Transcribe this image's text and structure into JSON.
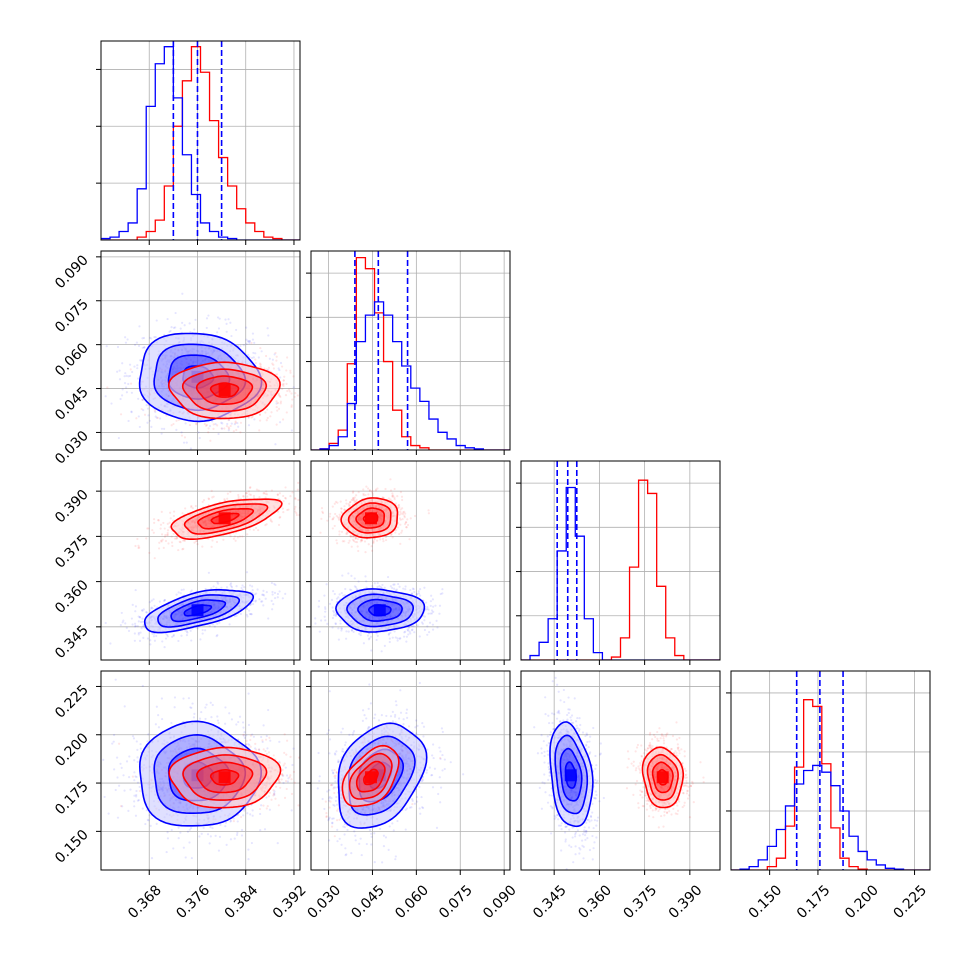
{
  "chart_data": {
    "type": "corner",
    "grid": true,
    "colors": {
      "series_a": "#0000ff",
      "series_b": "#ff0000"
    },
    "parameters": [
      {
        "range": [
          0.36,
          0.393
        ],
        "ticks": [
          "0.368",
          "0.376",
          "0.384",
          "0.392"
        ],
        "tick_values": [
          0.368,
          0.376,
          0.384,
          0.392
        ],
        "quantiles_a": [
          0.372,
          0.376,
          0.38
        ],
        "hist": {
          "bin_start": 0.36,
          "bin_width": 0.0015,
          "a": [
            0.5,
            1,
            3,
            6,
            18,
            47,
            62,
            68,
            50,
            30,
            16,
            6,
            3,
            1,
            0.5,
            0,
            0,
            0,
            0,
            0,
            0,
            0
          ],
          "b": [
            0,
            0,
            0,
            0,
            1,
            3,
            7,
            19,
            40,
            56,
            68,
            59,
            42,
            29,
            19,
            11,
            6,
            3,
            1,
            0.5,
            0,
            0
          ]
        }
      },
      {
        "range": [
          0.024,
          0.092
        ],
        "ticks": [
          "0.030",
          "0.045",
          "0.060",
          "0.075",
          "0.090"
        ],
        "tick_values": [
          0.03,
          0.045,
          0.06,
          0.075,
          0.09
        ],
        "quantiles_a": [
          0.039,
          0.047,
          0.057
        ],
        "hist": {
          "bin_start": 0.024,
          "bin_width": 0.0031,
          "a": [
            0,
            0.5,
            2,
            6,
            21,
            49,
            61,
            67,
            61,
            49,
            38,
            28,
            22,
            14,
            8,
            5,
            2,
            1,
            0.5,
            0,
            0,
            0
          ],
          "b": [
            0,
            0.5,
            3,
            9,
            39,
            87,
            82,
            62,
            40,
            18,
            6,
            2,
            1,
            0,
            0,
            0,
            0,
            0,
            0,
            0,
            0,
            0
          ]
        }
      },
      {
        "range": [
          0.334,
          0.4
        ],
        "ticks": [
          "0.345",
          "0.360",
          "0.375",
          "0.390"
        ],
        "tick_values": [
          0.345,
          0.36,
          0.375,
          0.39
        ],
        "quantiles_a": [
          0.346,
          0.3495,
          0.3525
        ],
        "hist": {
          "bin_start": 0.334,
          "bin_width": 0.003,
          "a": [
            0,
            3,
            12,
            28,
            74,
            117,
            84,
            28,
            5,
            0,
            0,
            0,
            0,
            0,
            0,
            0,
            0,
            0,
            0,
            0,
            0,
            0
          ],
          "b": [
            0,
            0,
            0,
            0,
            0,
            0,
            0,
            0,
            0,
            0,
            2,
            15,
            63,
            122,
            113,
            50,
            15,
            3,
            0,
            0,
            0,
            0
          ]
        }
      },
      {
        "range": [
          0.13,
          0.233
        ],
        "ticks": [
          "0.150",
          "0.175",
          "0.200",
          "0.225"
        ],
        "tick_values": [
          0.15,
          0.175,
          0.2,
          0.225
        ],
        "quantiles_a": [
          0.164,
          0.176,
          0.188
        ],
        "hist": {
          "bin_start": 0.13,
          "bin_width": 0.0047,
          "a": [
            0,
            0.5,
            2,
            6,
            14,
            24,
            38,
            51,
            59,
            62,
            58,
            50,
            35,
            20,
            11,
            6,
            3,
            1,
            0.5,
            0,
            0,
            0
          ],
          "b": [
            0,
            0,
            0,
            0,
            2,
            7,
            26,
            61,
            101,
            97,
            63,
            25,
            7,
            2,
            0.5,
            0,
            0,
            0,
            0,
            0,
            0,
            0
          ]
        }
      }
    ],
    "hist_y_ticks": [
      {
        "range": [
          0,
          70
        ],
        "ticks": [
          20,
          40,
          60
        ]
      },
      {
        "range": [
          0,
          90
        ],
        "ticks": [
          20,
          40,
          60,
          80
        ]
      },
      {
        "range": [
          0,
          135
        ],
        "ticks": [
          30,
          60,
          90,
          120
        ]
      },
      {
        "range": [
          0,
          118
        ],
        "ticks": [
          35,
          70,
          105
        ]
      }
    ],
    "pairs": [
      {
        "row": 1,
        "col": 0,
        "a": {
          "mean": [
            0.376,
            0.049
          ],
          "sd": [
            0.005,
            0.0075
          ],
          "rho": -0.05
        },
        "b": {
          "mean": [
            0.3805,
            0.0445
          ],
          "sd": [
            0.0045,
            0.0048
          ],
          "rho": 0.0
        }
      },
      {
        "row": 2,
        "col": 0,
        "a": {
          "mean": [
            0.376,
            0.3505
          ],
          "sd": [
            0.0045,
            0.0035
          ],
          "rho": 0.6
        },
        "b": {
          "mean": [
            0.3805,
            0.381
          ],
          "sd": [
            0.0045,
            0.0033
          ],
          "rho": 0.6
        }
      },
      {
        "row": 2,
        "col": 1,
        "a": {
          "mean": [
            0.0475,
            0.3505
          ],
          "sd": [
            0.0075,
            0.0035
          ],
          "rho": 0.0
        },
        "b": {
          "mean": [
            0.0445,
            0.381
          ],
          "sd": [
            0.0048,
            0.0033
          ],
          "rho": 0.1
        }
      },
      {
        "row": 3,
        "col": 0,
        "a": {
          "mean": [
            0.376,
            0.179
          ],
          "sd": [
            0.005,
            0.0135
          ],
          "rho": 0.0
        },
        "b": {
          "mean": [
            0.3805,
            0.178
          ],
          "sd": [
            0.0045,
            0.0078
          ],
          "rho": 0.05
        }
      },
      {
        "row": 3,
        "col": 1,
        "a": {
          "mean": [
            0.0475,
            0.179
          ],
          "sd": [
            0.0075,
            0.0135
          ],
          "rho": 0.3
        },
        "b": {
          "mean": [
            0.0445,
            0.178
          ],
          "sd": [
            0.0048,
            0.0078
          ],
          "rho": 0.45
        }
      },
      {
        "row": 3,
        "col": 2,
        "a": {
          "mean": [
            0.3505,
            0.179
          ],
          "sd": [
            0.0035,
            0.0135
          ],
          "rho": -0.25
        },
        "b": {
          "mean": [
            0.381,
            0.178
          ],
          "sd": [
            0.0033,
            0.0078
          ],
          "rho": -0.1
        }
      }
    ],
    "contour_levels_sigma": [
      0.5,
      1.0,
      1.5,
      2.0
    ]
  }
}
